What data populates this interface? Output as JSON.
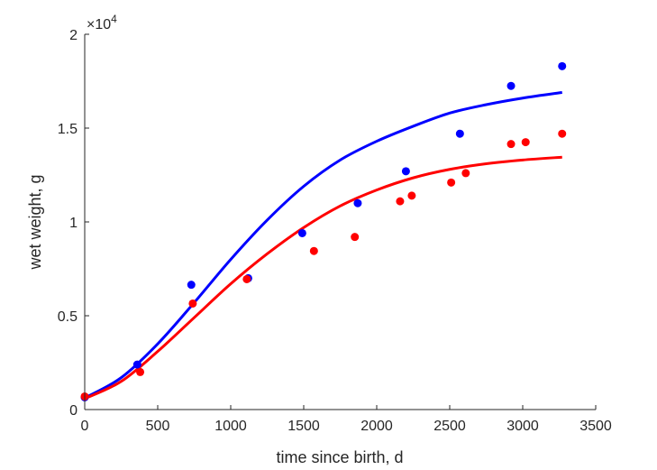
{
  "chart_data": {
    "type": "scatter",
    "title": "",
    "xlabel": "time since birth, d",
    "ylabel": "wet weight, g",
    "y_exponent_label": "×10",
    "y_exponent_power": "4",
    "xlim": [
      0,
      3500
    ],
    "ylim": [
      0,
      20000
    ],
    "xticks": [
      0,
      500,
      1000,
      1500,
      2000,
      2500,
      3000,
      3500
    ],
    "yticks": [
      0,
      5000,
      10000,
      15000,
      20000
    ],
    "xtick_labels": [
      "0",
      "500",
      "1000",
      "1500",
      "2000",
      "2500",
      "3000",
      "3500"
    ],
    "ytick_labels": [
      "0",
      "0.5",
      "1",
      "1.5",
      "2"
    ],
    "grid": false,
    "legend": "none",
    "series": [
      {
        "color": "#0000ff",
        "points": [
          {
            "x": 0,
            "y": 650
          },
          {
            "x": 360,
            "y": 2400
          },
          {
            "x": 730,
            "y": 6650
          },
          {
            "x": 1120,
            "y": 7000
          },
          {
            "x": 1490,
            "y": 9400
          },
          {
            "x": 1870,
            "y": 11000
          },
          {
            "x": 2200,
            "y": 12700
          },
          {
            "x": 2570,
            "y": 14700
          },
          {
            "x": 2920,
            "y": 17250
          },
          {
            "x": 3270,
            "y": 18300
          }
        ],
        "curve": [
          {
            "x": 0,
            "y": 620
          },
          {
            "x": 250,
            "y": 1700
          },
          {
            "x": 500,
            "y": 3500
          },
          {
            "x": 750,
            "y": 5700
          },
          {
            "x": 1000,
            "y": 8000
          },
          {
            "x": 1250,
            "y": 10100
          },
          {
            "x": 1500,
            "y": 11900
          },
          {
            "x": 1750,
            "y": 13300
          },
          {
            "x": 2000,
            "y": 14300
          },
          {
            "x": 2250,
            "y": 15100
          },
          {
            "x": 2500,
            "y": 15800
          },
          {
            "x": 2750,
            "y": 16250
          },
          {
            "x": 3000,
            "y": 16600
          },
          {
            "x": 3270,
            "y": 16900
          }
        ]
      },
      {
        "color": "#ff0000",
        "points": [
          {
            "x": 0,
            "y": 700
          },
          {
            "x": 380,
            "y": 2000
          },
          {
            "x": 740,
            "y": 5650
          },
          {
            "x": 1110,
            "y": 6950
          },
          {
            "x": 1570,
            "y": 8450
          },
          {
            "x": 1850,
            "y": 9200
          },
          {
            "x": 2160,
            "y": 11100
          },
          {
            "x": 2240,
            "y": 11400
          },
          {
            "x": 2510,
            "y": 12100
          },
          {
            "x": 2610,
            "y": 12600
          },
          {
            "x": 2920,
            "y": 14150
          },
          {
            "x": 3020,
            "y": 14250
          },
          {
            "x": 3270,
            "y": 14700
          }
        ],
        "curve": [
          {
            "x": 0,
            "y": 580
          },
          {
            "x": 250,
            "y": 1500
          },
          {
            "x": 500,
            "y": 3100
          },
          {
            "x": 750,
            "y": 4900
          },
          {
            "x": 1000,
            "y": 6700
          },
          {
            "x": 1250,
            "y": 8300
          },
          {
            "x": 1500,
            "y": 9700
          },
          {
            "x": 1750,
            "y": 10850
          },
          {
            "x": 2000,
            "y": 11700
          },
          {
            "x": 2250,
            "y": 12350
          },
          {
            "x": 2500,
            "y": 12800
          },
          {
            "x": 2750,
            "y": 13100
          },
          {
            "x": 3000,
            "y": 13300
          },
          {
            "x": 3270,
            "y": 13450
          }
        ]
      }
    ]
  }
}
